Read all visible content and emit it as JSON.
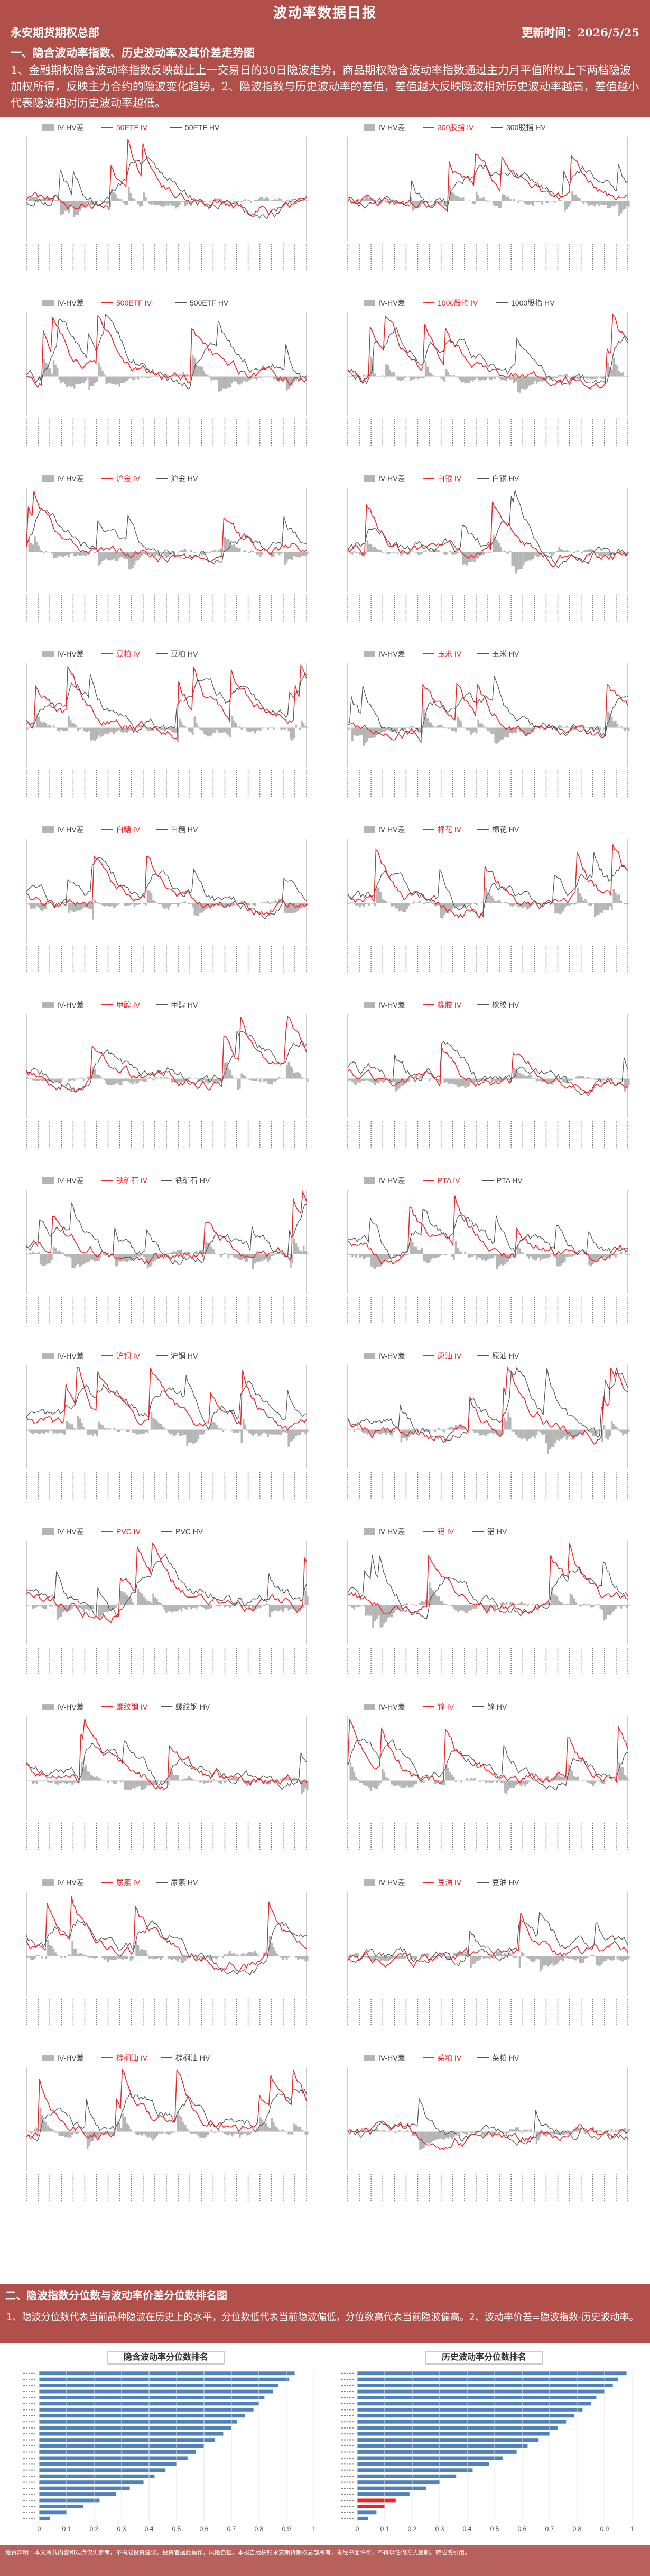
{
  "header": {
    "title": "波动率数据日报",
    "org": "永安期货期权总部",
    "update_label": "更新时间：",
    "update_date": "2026/5/25"
  },
  "section1": {
    "title": "一、隐含波动率指数、历史波动率及其价差走势图",
    "intro": "1、金融期权隐含波动率指数反映截止上一交易日的30日隐波走势，商品期权隐含波动率指数通过主力月平值附权上下两档隐波加权所得，反映主力合约的隐波变化趋势。2、隐波指数与历史波动率的差值，差值越大反映隐波相对历史波动率越高，差值越小代表隐波相对历史波动率越低。"
  },
  "colors": {
    "iv": "#e8262a",
    "hv": "#555555",
    "diff": "#b5b5b5",
    "band": "#b14f4b",
    "rank_bar": "#4f81bd",
    "rank_hl": "#e8262a"
  },
  "charts": [
    {
      "diff": "IV-HV差",
      "iv": "50ETF IV",
      "hv": "50ETF HV"
    },
    {
      "diff": "IV-HV差",
      "iv": "300股指 IV",
      "hv": "300股指 HV"
    },
    {
      "diff": "IV-HV差",
      "iv": "500ETF IV",
      "hv": "500ETF HV"
    },
    {
      "diff": "IV-HV差",
      "iv": "1000股指 IV",
      "hv": "1000股指 HV"
    },
    {
      "diff": "IV-HV差",
      "iv": "沪金 IV",
      "hv": "沪金 HV"
    },
    {
      "diff": "IV-HV差",
      "iv": "白银 IV",
      "hv": "白银 HV"
    },
    {
      "diff": "IV-HV差",
      "iv": "豆粕 IV",
      "hv": "豆粕 HV"
    },
    {
      "diff": "IV-HV差",
      "iv": "玉米 IV",
      "hv": "玉米 HV"
    },
    {
      "diff": "IV-HV差",
      "iv": "白糖 IV",
      "hv": "白糖 HV"
    },
    {
      "diff": "IV-HV差",
      "iv": "棉花 IV",
      "hv": "棉花 HV"
    },
    {
      "diff": "IV-HV差",
      "iv": "甲醇 IV",
      "hv": "甲醇 HV"
    },
    {
      "diff": "IV-HV差",
      "iv": "橡胶 IV",
      "hv": "橡胶 HV"
    },
    {
      "diff": "IV-HV差",
      "iv": "铁矿石 IV",
      "hv": "铁矿石 HV"
    },
    {
      "diff": "IV-HV差",
      "iv": "PTA IV",
      "hv": "PTA HV"
    },
    {
      "diff": "IV-HV差",
      "iv": "沪铜 IV",
      "hv": "沪铜 HV"
    },
    {
      "diff": "IV-HV差",
      "iv": "原油 IV",
      "hv": "原油 HV"
    },
    {
      "diff": "IV-HV差",
      "iv": "PVC IV",
      "hv": "PVC HV"
    },
    {
      "diff": "IV-HV差",
      "iv": "铝 IV",
      "hv": "铝 HV"
    },
    {
      "diff": "IV-HV差",
      "iv": "螺纹钢 IV",
      "hv": "螺纹钢 HV"
    },
    {
      "diff": "IV-HV差",
      "iv": "锌 IV",
      "hv": "锌 HV"
    },
    {
      "diff": "IV-HV差",
      "iv": "尿素 IV",
      "hv": "尿素 HV"
    },
    {
      "diff": "IV-HV差",
      "iv": "豆油 IV",
      "hv": "豆油 HV"
    },
    {
      "diff": "IV-HV差",
      "iv": "棕榈油 IV",
      "hv": "棕榈油 HV"
    },
    {
      "diff": "IV-HV差",
      "iv": "菜粕 IV",
      "hv": "菜粕 HV"
    }
  ],
  "section2": {
    "title": "二、隐波指数分位数与波动率价差分位数排名图",
    "note": "1、隐波分位数代表当前品种隐波在历史上的水平，分位数低代表当前隐波偏低，分位数高代表当前隐波偏高。2、波动率价差=隐波指数-历史波动率。"
  },
  "ranks": [
    {
      "title": "隐含波动率分位数排名",
      "xticks": [
        "0",
        "0.1",
        "0.2",
        "0.3",
        "0.4",
        "0.5",
        "0.6",
        "0.7",
        "0.8",
        "0.9",
        "1"
      ],
      "chart_data": {
        "type": "bar",
        "values": [
          0.93,
          0.91,
          0.87,
          0.85,
          0.82,
          0.8,
          0.78,
          0.75,
          0.72,
          0.7,
          0.67,
          0.64,
          0.6,
          0.57,
          0.54,
          0.5,
          0.46,
          0.42,
          0.38,
          0.33,
          0.28,
          0.22,
          0.16,
          0.1,
          0.04
        ],
        "xlim": [
          0,
          1
        ]
      }
    },
    {
      "title": "历史波动率分位数排名",
      "xticks": [
        "0",
        "0.1",
        "0.2",
        "0.3",
        "0.4",
        "0.5",
        "0.6",
        "0.7",
        "0.8",
        "0.9",
        "1"
      ],
      "chart_data": {
        "type": "bar",
        "values": [
          0.98,
          0.95,
          0.93,
          0.9,
          0.87,
          0.85,
          0.82,
          0.79,
          0.76,
          0.73,
          0.7,
          0.66,
          0.62,
          0.58,
          0.53,
          0.48,
          0.42,
          0.36,
          0.3,
          0.25,
          0.19,
          0.14,
          0.1,
          0.07,
          0.04
        ],
        "xlim": [
          0,
          1
        ]
      }
    }
  ],
  "footer": "免责声明：本文所载内容和观点仅供参考，不构成投资建议。投资者据此操作，风险自担。本报告版权归永安期货期权总部所有，未经书面许可，不得以任何方式复制、转载或引用。"
}
